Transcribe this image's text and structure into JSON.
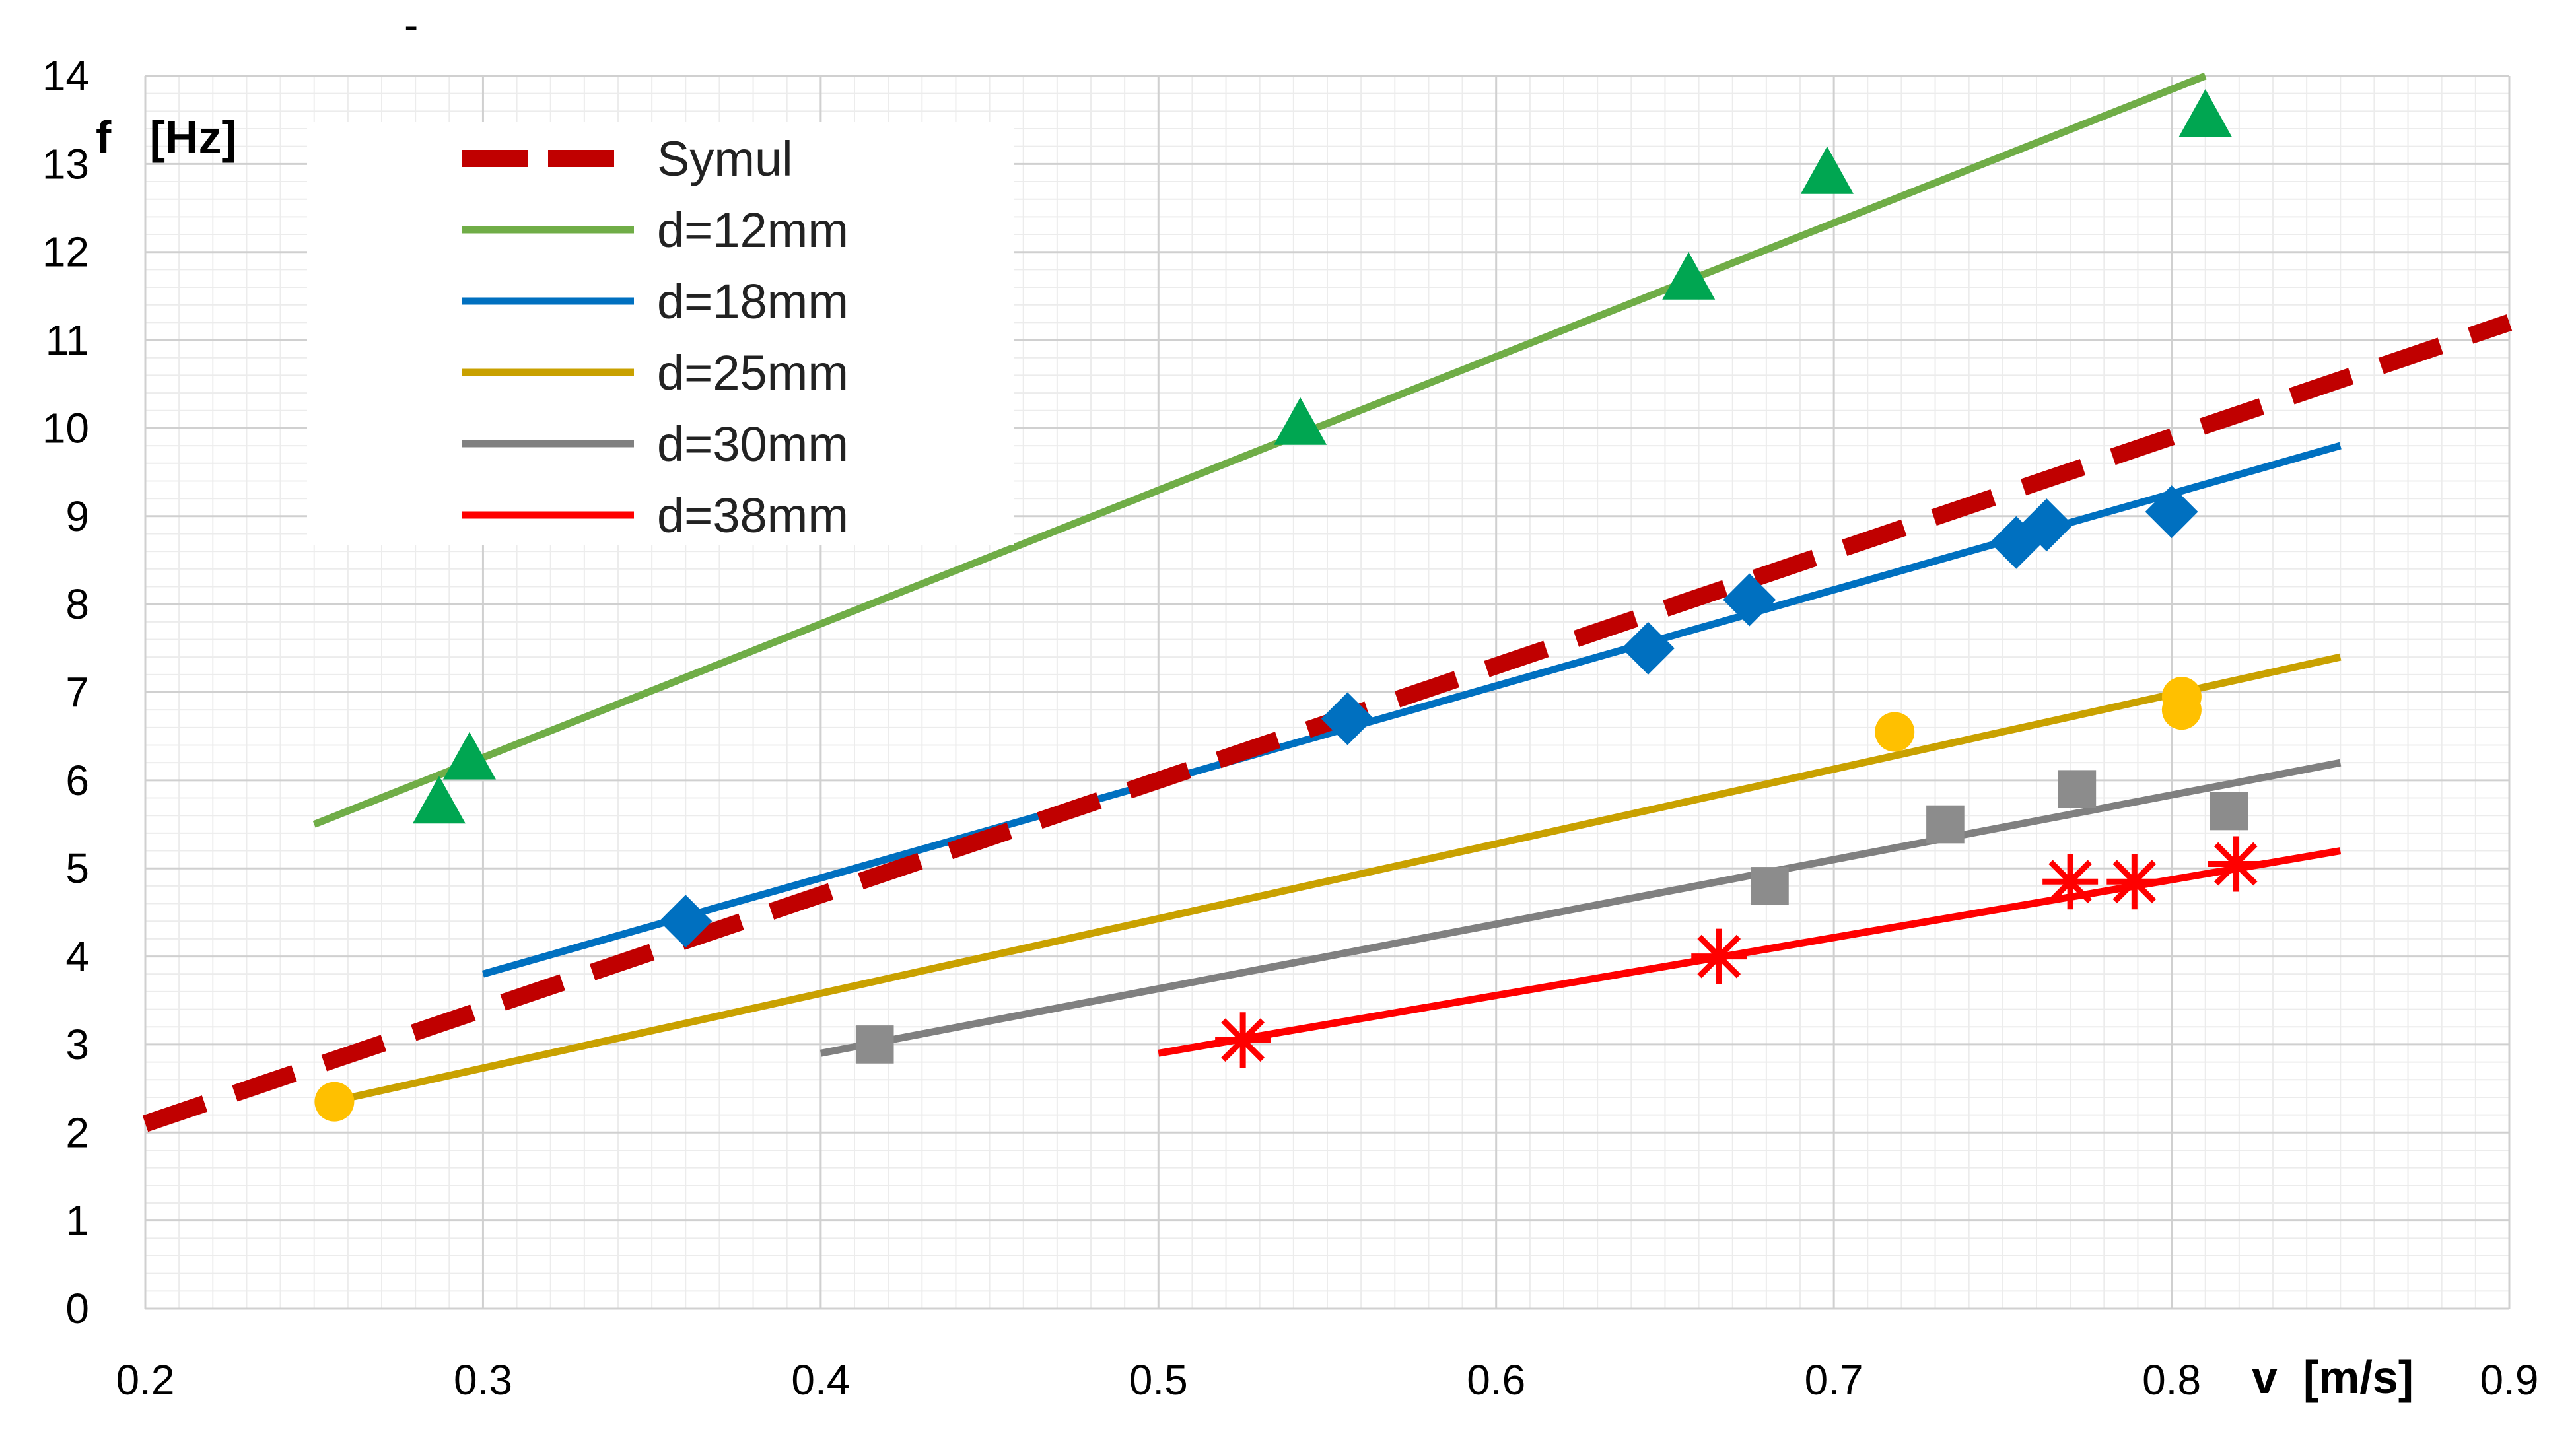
{
  "chart_data": {
    "type": "scatter",
    "title": "",
    "xlabel": "v  [m/s]",
    "ylabel": "f   [Hz]",
    "xlim": [
      0.2,
      0.9
    ],
    "ylim": [
      0,
      14
    ],
    "x_ticks": [
      0.2,
      0.3,
      0.4,
      0.5,
      0.6,
      0.7,
      0.8,
      0.9
    ],
    "x_tick_labels": [
      "0.2",
      "0.3",
      "0.4",
      "0.5",
      "0.6",
      "0.7",
      "0.8",
      "0.9"
    ],
    "y_ticks": [
      0,
      1,
      2,
      3,
      4,
      5,
      6,
      7,
      8,
      9,
      10,
      11,
      12,
      13,
      14
    ],
    "y_tick_labels": [
      "0",
      "1",
      "2",
      "3",
      "4",
      "5",
      "6",
      "7",
      "8",
      "9",
      "10",
      "11",
      "12",
      "13",
      "14"
    ],
    "grid": true,
    "minor_grid": true,
    "legend_position": "top-left",
    "stray_mark": "-",
    "series": [
      {
        "name": "Symul",
        "style": "dashed",
        "color": "#C00000",
        "line": {
          "x": [
            0.2,
            0.9
          ],
          "y": [
            2.1,
            11.2
          ]
        },
        "marker": "none",
        "points": []
      },
      {
        "name": "d=12mm",
        "style": "solid",
        "color": "#70AD47",
        "marker": "triangle",
        "marker_color": "#00A651",
        "line": {
          "x": [
            0.25,
            0.81
          ],
          "y": [
            5.5,
            14.0
          ]
        },
        "points": [
          {
            "x": 0.287,
            "y": 5.75
          },
          {
            "x": 0.296,
            "y": 6.25
          },
          {
            "x": 0.542,
            "y": 10.05
          },
          {
            "x": 0.657,
            "y": 11.7
          },
          {
            "x": 0.698,
            "y": 12.9
          },
          {
            "x": 0.81,
            "y": 13.55
          }
        ]
      },
      {
        "name": "d=18mm",
        "style": "solid",
        "color": "#0070C0",
        "marker": "diamond",
        "marker_color": "#0070C0",
        "line": {
          "x": [
            0.3,
            0.85
          ],
          "y": [
            3.8,
            9.8
          ]
        },
        "points": [
          {
            "x": 0.36,
            "y": 4.4
          },
          {
            "x": 0.556,
            "y": 6.7
          },
          {
            "x": 0.645,
            "y": 7.5
          },
          {
            "x": 0.675,
            "y": 8.05
          },
          {
            "x": 0.754,
            "y": 8.7
          },
          {
            "x": 0.763,
            "y": 8.9
          },
          {
            "x": 0.8,
            "y": 9.05
          }
        ]
      },
      {
        "name": "d=25mm",
        "style": "solid",
        "color": "#C9A100",
        "marker": "circle",
        "marker_color": "#FFC000",
        "line": {
          "x": [
            0.255,
            0.85
          ],
          "y": [
            2.35,
            7.4
          ]
        },
        "points": [
          {
            "x": 0.256,
            "y": 2.35
          },
          {
            "x": 0.718,
            "y": 6.55
          },
          {
            "x": 0.803,
            "y": 6.8
          },
          {
            "x": 0.803,
            "y": 6.95
          }
        ]
      },
      {
        "name": "d=30mm",
        "style": "solid",
        "color": "#808080",
        "marker": "square",
        "marker_color": "#8C8C8C",
        "line": {
          "x": [
            0.4,
            0.85
          ],
          "y": [
            2.9,
            6.2
          ]
        },
        "points": [
          {
            "x": 0.416,
            "y": 3.0
          },
          {
            "x": 0.681,
            "y": 4.8
          },
          {
            "x": 0.733,
            "y": 5.5
          },
          {
            "x": 0.772,
            "y": 5.9
          },
          {
            "x": 0.817,
            "y": 5.65
          }
        ]
      },
      {
        "name": "d=38mm",
        "style": "solid",
        "color": "#FF0000",
        "marker": "star",
        "marker_color": "#FF0000",
        "line": {
          "x": [
            0.5,
            0.85
          ],
          "y": [
            2.9,
            5.2
          ]
        },
        "points": [
          {
            "x": 0.525,
            "y": 3.05
          },
          {
            "x": 0.666,
            "y": 4.0
          },
          {
            "x": 0.77,
            "y": 4.85
          },
          {
            "x": 0.789,
            "y": 4.85
          },
          {
            "x": 0.819,
            "y": 5.05
          }
        ]
      }
    ]
  }
}
